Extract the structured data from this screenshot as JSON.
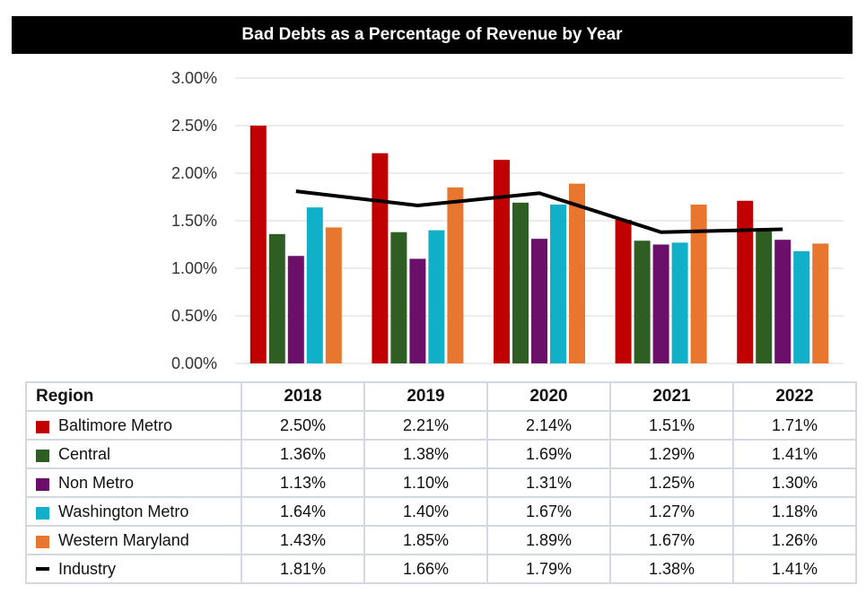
{
  "chart_data": {
    "type": "bar",
    "title": "Bad Debts as a Percentage of Revenue by Year",
    "categories": [
      "2018",
      "2019",
      "2020",
      "2021",
      "2022"
    ],
    "ylim": [
      0,
      3.0
    ],
    "yticks": [
      "0.00%",
      "0.50%",
      "1.00%",
      "1.50%",
      "2.00%",
      "2.50%",
      "3.00%"
    ],
    "grid": true,
    "table_header": "Region",
    "series": [
      {
        "name": "Baltimore Metro",
        "type": "bar",
        "color": "#c00000",
        "values": [
          2.5,
          2.21,
          2.14,
          1.51,
          1.71
        ],
        "labels": [
          "2.50%",
          "2.21%",
          "2.14%",
          "1.51%",
          "1.71%"
        ]
      },
      {
        "name": "Central",
        "type": "bar",
        "color": "#2f5e23",
        "values": [
          1.36,
          1.38,
          1.69,
          1.29,
          1.41
        ],
        "labels": [
          "1.36%",
          "1.38%",
          "1.69%",
          "1.29%",
          "1.41%"
        ]
      },
      {
        "name": "Non Metro",
        "type": "bar",
        "color": "#6b0f6b",
        "values": [
          1.13,
          1.1,
          1.31,
          1.25,
          1.3
        ],
        "labels": [
          "1.13%",
          "1.10%",
          "1.31%",
          "1.25%",
          "1.30%"
        ]
      },
      {
        "name": "Washington Metro",
        "type": "bar",
        "color": "#0fb0c8",
        "values": [
          1.64,
          1.4,
          1.67,
          1.27,
          1.18
        ],
        "labels": [
          "1.64%",
          "1.40%",
          "1.67%",
          "1.27%",
          "1.18%"
        ]
      },
      {
        "name": "Western Maryland",
        "type": "bar",
        "color": "#e8762f",
        "values": [
          1.43,
          1.85,
          1.89,
          1.67,
          1.26
        ],
        "labels": [
          "1.43%",
          "1.85%",
          "1.89%",
          "1.67%",
          "1.26%"
        ]
      },
      {
        "name": "Industry",
        "type": "line",
        "color": "#000000",
        "values": [
          1.81,
          1.66,
          1.79,
          1.38,
          1.41
        ],
        "labels": [
          "1.81%",
          "1.66%",
          "1.79%",
          "1.38%",
          "1.41%"
        ]
      }
    ]
  }
}
